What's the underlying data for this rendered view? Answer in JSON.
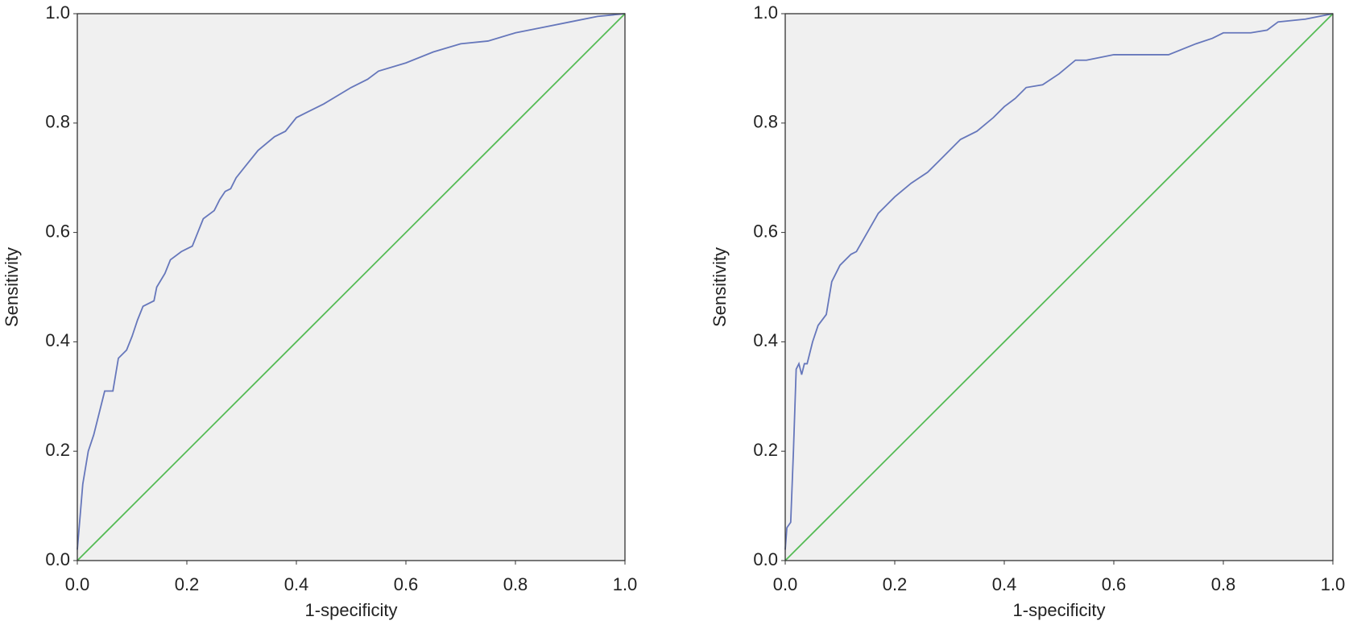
{
  "chart_data": [
    {
      "type": "line",
      "xlabel": "1-specificity",
      "ylabel": "Sensitivity",
      "xlim": [
        0,
        1
      ],
      "ylim": [
        0,
        1
      ],
      "xticks": [
        {
          "value": 0,
          "label": "0.0"
        },
        {
          "value": 0.2,
          "label": "0.2"
        },
        {
          "value": 0.4,
          "label": "0.4"
        },
        {
          "value": 0.6,
          "label": "0.6"
        },
        {
          "value": 0.8,
          "label": "0.8"
        },
        {
          "value": 1,
          "label": "1.0"
        }
      ],
      "yticks": [
        {
          "value": 0,
          "label": "0.0"
        },
        {
          "value": 0.2,
          "label": "0.2"
        },
        {
          "value": 0.4,
          "label": "0.4"
        },
        {
          "value": 0.6,
          "label": "0.6"
        },
        {
          "value": 0.8,
          "label": "0.8"
        },
        {
          "value": 1,
          "label": "1.0"
        }
      ],
      "series": [
        {
          "color": "#6677bb",
          "x": [
            0,
            0.005,
            0.01,
            0.02,
            0.03,
            0.04,
            0.05,
            0.065,
            0.07,
            0.075,
            0.09,
            0.1,
            0.11,
            0.12,
            0.14,
            0.145,
            0.16,
            0.17,
            0.19,
            0.2,
            0.21,
            0.22,
            0.23,
            0.25,
            0.26,
            0.27,
            0.28,
            0.29,
            0.31,
            0.33,
            0.36,
            0.38,
            0.4,
            0.42,
            0.45,
            0.5,
            0.53,
            0.55,
            0.6,
            0.65,
            0.7,
            0.75,
            0.8,
            0.85,
            0.9,
            0.95,
            1
          ],
          "values": [
            0.02,
            0.08,
            0.14,
            0.2,
            0.23,
            0.27,
            0.31,
            0.31,
            0.34,
            0.37,
            0.385,
            0.41,
            0.44,
            0.465,
            0.475,
            0.5,
            0.525,
            0.55,
            0.565,
            0.57,
            0.575,
            0.6,
            0.625,
            0.64,
            0.66,
            0.675,
            0.68,
            0.7,
            0.725,
            0.75,
            0.775,
            0.785,
            0.81,
            0.82,
            0.835,
            0.865,
            0.88,
            0.895,
            0.91,
            0.93,
            0.945,
            0.95,
            0.965,
            0.975,
            0.985,
            0.995,
            1
          ]
        },
        {
          "color": "#55bb55",
          "x": [
            0,
            1
          ],
          "values": [
            0,
            1
          ]
        }
      ]
    },
    {
      "type": "line",
      "xlabel": "1-specificity",
      "ylabel": "Sensitivity",
      "xlim": [
        0,
        1
      ],
      "ylim": [
        0,
        1
      ],
      "xticks": [
        {
          "value": 0,
          "label": "0.0"
        },
        {
          "value": 0.2,
          "label": "0.2"
        },
        {
          "value": 0.4,
          "label": "0.4"
        },
        {
          "value": 0.6,
          "label": "0.6"
        },
        {
          "value": 0.8,
          "label": "0.8"
        },
        {
          "value": 1,
          "label": "1.0"
        }
      ],
      "yticks": [
        {
          "value": 0,
          "label": "0.0"
        },
        {
          "value": 0.2,
          "label": "0.2"
        },
        {
          "value": 0.4,
          "label": "0.4"
        },
        {
          "value": 0.6,
          "label": "0.6"
        },
        {
          "value": 0.8,
          "label": "0.8"
        },
        {
          "value": 1,
          "label": "1.0"
        }
      ],
      "series": [
        {
          "color": "#6677bb",
          "x": [
            0,
            0.003,
            0.01,
            0.015,
            0.02,
            0.025,
            0.03,
            0.035,
            0.04,
            0.05,
            0.06,
            0.075,
            0.085,
            0.1,
            0.12,
            0.13,
            0.15,
            0.17,
            0.2,
            0.23,
            0.26,
            0.28,
            0.3,
            0.32,
            0.35,
            0.38,
            0.4,
            0.42,
            0.44,
            0.47,
            0.5,
            0.53,
            0.55,
            0.6,
            0.65,
            0.7,
            0.75,
            0.78,
            0.8,
            0.85,
            0.88,
            0.9,
            0.95,
            1
          ],
          "values": [
            0.02,
            0.06,
            0.07,
            0.2,
            0.35,
            0.36,
            0.34,
            0.36,
            0.36,
            0.4,
            0.43,
            0.45,
            0.51,
            0.54,
            0.56,
            0.565,
            0.6,
            0.635,
            0.665,
            0.69,
            0.71,
            0.73,
            0.75,
            0.77,
            0.785,
            0.81,
            0.83,
            0.845,
            0.865,
            0.87,
            0.89,
            0.915,
            0.915,
            0.925,
            0.925,
            0.925,
            0.945,
            0.955,
            0.965,
            0.965,
            0.97,
            0.985,
            0.99,
            1
          ]
        },
        {
          "color": "#55bb55",
          "x": [
            0,
            1
          ],
          "values": [
            0,
            1
          ]
        }
      ]
    }
  ]
}
